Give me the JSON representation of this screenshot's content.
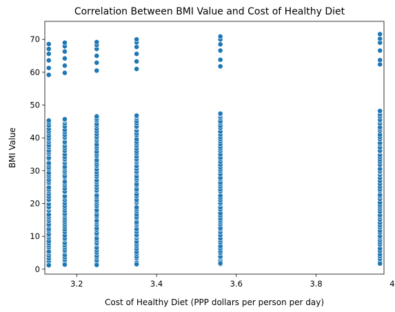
{
  "chart_data": {
    "type": "scatter",
    "title": "Correlation Between BMI Value and Cost of Healthy Diet",
    "xlabel": "Cost of Healthy Diet (PPP dollars per person per day)",
    "ylabel": "BMI Value",
    "xlim": [
      3.12,
      3.97
    ],
    "ylim": [
      -1.5,
      75.5
    ],
    "xticks": [
      3.2,
      3.4,
      3.6,
      3.8,
      4.0
    ],
    "xtick_labels": [
      "3.2",
      "3.4",
      "3.6",
      "3.8",
      "4.0"
    ],
    "yticks": [
      0,
      10,
      20,
      30,
      40,
      50,
      60,
      70
    ],
    "ytick_labels": [
      "0",
      "10",
      "20",
      "30",
      "40",
      "50",
      "60",
      "70"
    ],
    "grid": false,
    "marker_color": "#1f77b4",
    "groups": [
      {
        "x": 3.13,
        "low_range": [
          1.2,
          45.3
        ],
        "high_values": [
          59.2,
          61.3,
          63.6,
          65.6,
          67.1,
          68.6
        ]
      },
      {
        "x": 3.17,
        "low_range": [
          1.4,
          45.7
        ],
        "high_values": [
          59.8,
          62.0,
          64.2,
          66.3,
          67.9,
          69.0
        ]
      },
      {
        "x": 3.25,
        "low_range": [
          1.3,
          46.5
        ],
        "high_values": [
          60.5,
          62.9,
          65.0,
          67.1,
          68.3,
          69.2
        ]
      },
      {
        "x": 3.35,
        "low_range": [
          1.5,
          46.8
        ],
        "high_values": [
          61.0,
          63.3,
          65.6,
          67.7,
          69.1,
          70.0
        ]
      },
      {
        "x": 3.56,
        "low_range": [
          1.8,
          47.4
        ],
        "high_values": [
          61.8,
          63.8,
          66.6,
          68.5,
          70.0,
          70.9
        ]
      },
      {
        "x": 3.96,
        "low_range": [
          1.7,
          48.2
        ],
        "high_values": [
          62.4,
          63.7,
          66.6,
          69.0,
          70.2,
          71.6
        ]
      }
    ]
  }
}
